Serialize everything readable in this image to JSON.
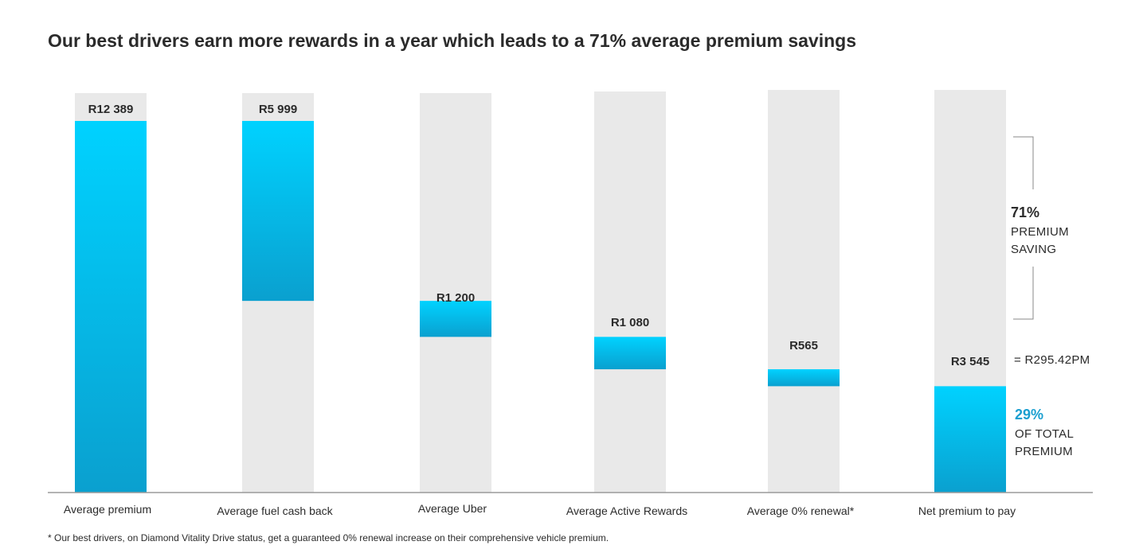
{
  "title": "Our best drivers earn more rewards in a year which leads to a 71% average premium savings",
  "chart_data": {
    "type": "bar",
    "subtype": "waterfall",
    "categories": [
      "Average premium",
      "Average fuel cash back",
      "Average Uber",
      "Average Active Rewards",
      "Average 0% renewal*",
      "Net premium to pay"
    ],
    "value_labels": [
      "R12 389",
      "R5 999",
      "R1 200",
      "R1 080",
      "R565",
      "R3 545"
    ],
    "values": [
      12389,
      5999,
      1200,
      1080,
      565,
      3545
    ],
    "bar_kind": [
      "total",
      "decrease",
      "decrease",
      "decrease",
      "decrease",
      "total"
    ],
    "ylim": [
      0,
      12389
    ],
    "grid": false,
    "legend": "none",
    "colors": {
      "bar_top": "#00d2ff",
      "bar_bottom": "#0aa0cf",
      "track": "#e9e9e9",
      "axis": "#9a9a9a",
      "accent_text": "#1a9fd0"
    }
  },
  "annotations": {
    "saving_pct": "71%",
    "saving_line1": "PREMIUM",
    "saving_line2": "SAVING",
    "monthly": "= R295.42PM",
    "total_pct": "29%",
    "total_line1": "OF TOTAL",
    "total_line2": "PREMIUM"
  },
  "footnote": "* Our best drivers, on Diamond Vitality Drive status, get a guaranteed 0% renewal increase on their comprehensive vehicle premium."
}
